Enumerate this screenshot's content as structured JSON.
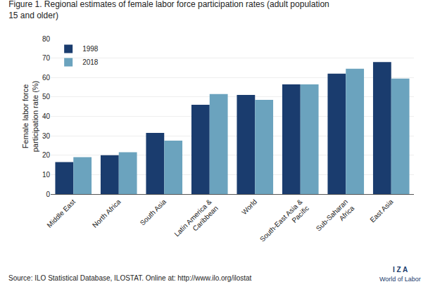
{
  "chart_data": {
    "type": "bar",
    "title": "Figure 1. Regional estimates of female labor force participation rates (adult population\n15 and older)",
    "ylabel": "Female labor force\nparticipation rate (%)",
    "categories": [
      "Middle East",
      "North Africa",
      "South Asia",
      "Latin America &\nCaribbean",
      "World",
      "South-East Asia &\nPacific",
      "Sub-Saharan\nAfrica",
      "East Asia"
    ],
    "series": [
      {
        "name": "1998",
        "color": "#1A3C6E",
        "values": [
          16.5,
          20.0,
          31.5,
          46.0,
          51.0,
          56.5,
          62.0,
          68.0
        ]
      },
      {
        "name": "2018",
        "color": "#6BA3BE",
        "values": [
          19.0,
          21.5,
          27.5,
          51.5,
          48.5,
          56.5,
          64.5,
          59.5
        ]
      }
    ],
    "ylim": [
      0,
      80
    ],
    "yticks": [
      0,
      10,
      20,
      30,
      40,
      50,
      60,
      70,
      80
    ],
    "grid": true,
    "legend": "upper left",
    "annotations": [
      "Source: ILO Statistical Database, ILOSTAT. Online at: http://www.ilo.org/ilostat",
      "I Z A",
      "World of Labor"
    ]
  }
}
